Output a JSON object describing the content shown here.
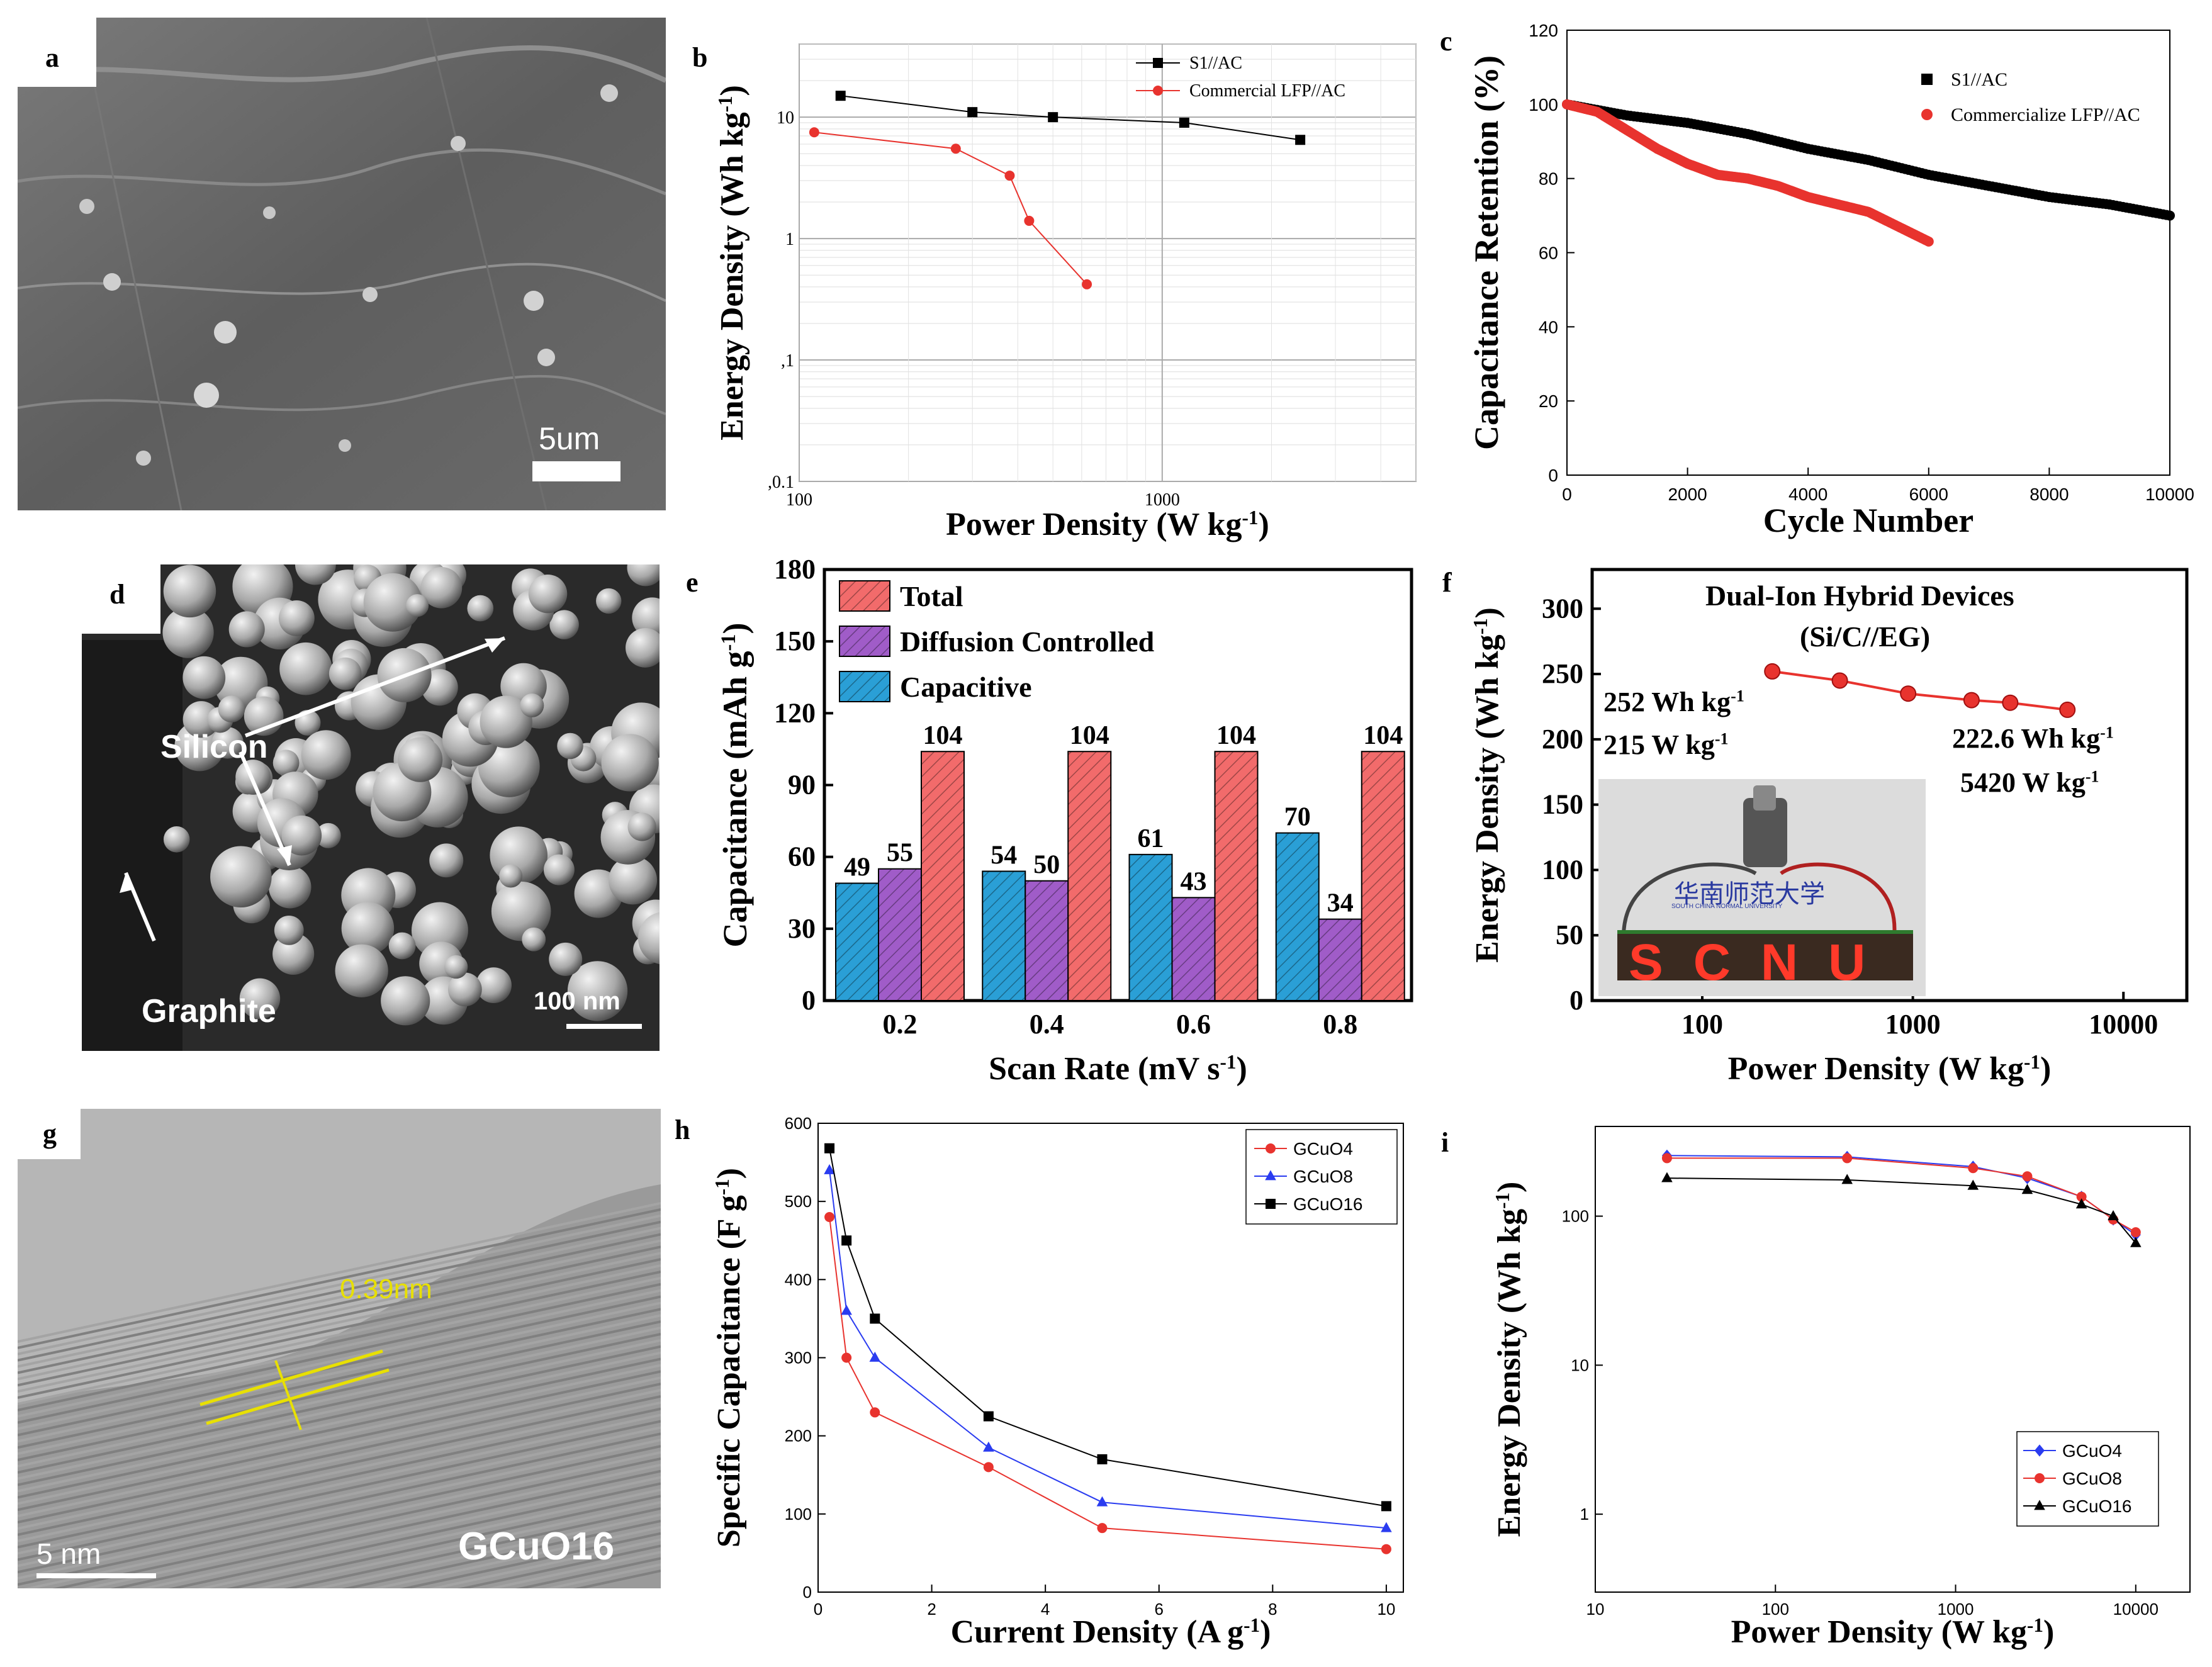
{
  "panels": {
    "a": {
      "letter": "a",
      "scale_bar": "5um"
    },
    "d": {
      "letter": "d",
      "silicon_label": "Silicon",
      "graphite_label": "Graphite",
      "scale_bar": "100 nm"
    },
    "g": {
      "letter": "g",
      "spacing_label": "0.39nm",
      "scale_bar": "5 nm",
      "sample_label": "GCuO16"
    },
    "b": {
      "letter": "b"
    },
    "c": {
      "letter": "c"
    },
    "e": {
      "letter": "e"
    },
    "f": {
      "letter": "f",
      "title_line1": "Dual-Ion Hybrid Devices",
      "title_line2": "(Si/C//EG)",
      "annot_left_1": "252 Wh kg",
      "annot_left_2": "215 W kg",
      "annot_right_1": "222.6 Wh kg",
      "annot_right_2": "5420 W kg",
      "sign_text": "SCNU",
      "sign_header": "华南师范大学",
      "sign_subheader": "SOUTH CHINA NORMAL UNIVERSITY"
    },
    "h": {
      "letter": "h"
    },
    "i": {
      "letter": "i"
    }
  },
  "colors": {
    "black": "#000000",
    "red": "#e8332e",
    "blue": "#2a3cf0",
    "bar_total": "#f26b6b",
    "bar_diff": "#a05cc8",
    "bar_cap": "#2a9fd6"
  },
  "chart_data": [
    {
      "id": "b",
      "type": "line",
      "xscale": "log",
      "yscale": "log",
      "xlabel": "Power Density (W  kg",
      "xlabel_sup": "-1",
      "xlabel_end": ")",
      "ylabel": "Energy Density (Wh kg",
      "ylabel_sup": "-1",
      "ylabel_end": ")",
      "xlim": [
        100,
        5000
      ],
      "ylim": [
        0.01,
        40
      ],
      "xticks": [
        100,
        1000
      ],
      "xtick_labels": [
        "100",
        "1000"
      ],
      "yticks": [
        0.01,
        0.1,
        1,
        10
      ],
      "ytick_labels": [
        ",0.1",
        ",1",
        "1",
        "10"
      ],
      "series": [
        {
          "name": "S1//AC",
          "color": "#000000",
          "marker": "square",
          "x": [
            130,
            300,
            500,
            1150,
            2400
          ],
          "y": [
            15,
            11,
            10,
            9,
            6.5
          ]
        },
        {
          "name": "Commercial LFP//AC",
          "color": "#e8332e",
          "marker": "circle",
          "x": [
            110,
            270,
            380,
            430,
            620
          ],
          "y": [
            7.5,
            5.5,
            3.3,
            1.4,
            0.42
          ]
        }
      ]
    },
    {
      "id": "c",
      "type": "scatter",
      "xlabel": "Cycle Number",
      "ylabel": "Capacitance  Retention (%)",
      "xlim": [
        0,
        10000
      ],
      "ylim": [
        0,
        120
      ],
      "xticks": [
        0,
        2000,
        4000,
        6000,
        8000,
        10000
      ],
      "xtick_labels": [
        "0",
        "2000",
        "4000",
        "6000",
        "8000",
        "10000"
      ],
      "yticks": [
        0,
        20,
        40,
        60,
        80,
        100,
        120
      ],
      "ytick_labels": [
        "0",
        "20",
        "40",
        "60",
        "80",
        "100",
        "120"
      ],
      "series": [
        {
          "name": "S1//AC",
          "color": "#000000",
          "x": [
            0,
            1000,
            2000,
            3000,
            4000,
            5000,
            6000,
            7000,
            8000,
            9000,
            10000
          ],
          "y": [
            100,
            97,
            95,
            92,
            88,
            85,
            81,
            78,
            75,
            73,
            70
          ]
        },
        {
          "name": "Commercialize LFP//AC",
          "color": "#e8332e",
          "x": [
            0,
            500,
            1000,
            1500,
            2000,
            2500,
            3000,
            3500,
            4000,
            4500,
            5000,
            5500,
            6000
          ],
          "y": [
            100,
            98,
            93,
            88,
            84,
            81,
            80,
            78,
            75,
            73,
            71,
            67,
            63
          ]
        }
      ]
    },
    {
      "id": "e",
      "type": "bar",
      "xlabel": "Scan Rate (mV s",
      "xlabel_sup": "-1",
      "xlabel_end": ")",
      "ylabel": "Capacitance (mAh g",
      "ylabel_sup": "-1",
      "ylabel_end": ")",
      "categories": [
        "0.2",
        "0.4",
        "0.6",
        "0.8"
      ],
      "ylim": [
        0,
        180
      ],
      "yticks": [
        0,
        30,
        60,
        90,
        120,
        150,
        180
      ],
      "ytick_labels": [
        "0",
        "30",
        "60",
        "90",
        "120",
        "150",
        "180"
      ],
      "series": [
        {
          "name": "Capacitive",
          "values": [
            49,
            54,
            61,
            70
          ],
          "labels": [
            "49",
            "54",
            "61",
            "70"
          ]
        },
        {
          "name": "Diffusion Controlled",
          "values": [
            55,
            50,
            43,
            34
          ],
          "labels": [
            "55",
            "50",
            "43",
            "34"
          ]
        },
        {
          "name": "Total",
          "values": [
            104,
            104,
            104,
            104
          ],
          "labels": [
            "104",
            "104",
            "104",
            "104"
          ]
        }
      ],
      "legend": [
        "Total",
        "Diffusion Controlled",
        "Capacitive"
      ]
    },
    {
      "id": "f",
      "type": "line",
      "xscale": "log",
      "xlabel": "Power Density (W  kg",
      "xlabel_sup": "-1",
      "xlabel_end": ")",
      "ylabel": "Energy Density (Wh kg",
      "ylabel_sup": "-1",
      "ylabel_end": ")",
      "xlim": [
        30,
        20000
      ],
      "ylim": [
        0,
        330
      ],
      "xticks": [
        100,
        1000,
        10000
      ],
      "xtick_labels": [
        "100",
        "1000",
        "10000"
      ],
      "yticks": [
        0,
        50,
        100,
        150,
        200,
        250,
        300
      ],
      "ytick_labels": [
        "0",
        "50",
        "100",
        "150",
        "200",
        "250",
        "300"
      ],
      "series": [
        {
          "name": "Si/C//EG",
          "color": "#e8332e",
          "x": [
            215,
            450,
            950,
            1900,
            2900,
            5420
          ],
          "y": [
            252,
            245,
            235,
            230,
            228,
            222.6
          ]
        }
      ]
    },
    {
      "id": "h",
      "type": "line",
      "xlabel": "Current Density (A g",
      "xlabel_sup": "-1",
      "xlabel_end": ")",
      "ylabel": "Specific Capacitance (F g",
      "ylabel_sup": "-1",
      "ylabel_end": ")",
      "xlim": [
        0,
        10.3
      ],
      "ylim": [
        0,
        600
      ],
      "xticks": [
        0,
        2,
        4,
        6,
        8,
        10
      ],
      "xtick_labels": [
        "0",
        "2",
        "4",
        "6",
        "8",
        "10"
      ],
      "yticks": [
        0,
        100,
        200,
        300,
        400,
        500,
        600
      ],
      "ytick_labels": [
        "0",
        "100",
        "200",
        "300",
        "400",
        "500",
        "600"
      ],
      "series": [
        {
          "name": "GCuO4",
          "color": "#e8332e",
          "marker": "circle",
          "x": [
            0.2,
            0.5,
            1,
            3,
            5,
            10
          ],
          "y": [
            480,
            300,
            230,
            160,
            82,
            55
          ]
        },
        {
          "name": "GCuO8",
          "color": "#2a3cf0",
          "marker": "triangle",
          "x": [
            0.2,
            0.5,
            1,
            3,
            5,
            10
          ],
          "y": [
            540,
            360,
            300,
            185,
            115,
            82
          ]
        },
        {
          "name": "GCuO16",
          "color": "#000000",
          "marker": "square",
          "x": [
            0.2,
            0.5,
            1,
            3,
            5,
            10
          ],
          "y": [
            568,
            450,
            350,
            225,
            170,
            110
          ]
        }
      ]
    },
    {
      "id": "i",
      "type": "line",
      "xscale": "log",
      "yscale": "log",
      "xlabel": "Power Density (W  kg",
      "xlabel_sup": "-1",
      "xlabel_end": ")",
      "ylabel": "Energy Density (Wh kg",
      "ylabel_sup": "-1",
      "ylabel_end": ")",
      "xlim": [
        10,
        20000
      ],
      "ylim": [
        0.3,
        400
      ],
      "xticks": [
        10,
        100,
        1000,
        10000
      ],
      "xtick_labels": [
        "10",
        "100",
        "1000",
        "10000"
      ],
      "yticks": [
        1,
        10,
        100
      ],
      "ytick_labels": [
        "1",
        "10",
        "100"
      ],
      "series": [
        {
          "name": "GCuO4",
          "color": "#2a3cf0",
          "marker": "diamond",
          "x": [
            25,
            250,
            1250,
            2500,
            5000,
            7500,
            10000
          ],
          "y": [
            255,
            250,
            215,
            180,
            135,
            95,
            75
          ]
        },
        {
          "name": "GCuO8",
          "color": "#e8332e",
          "marker": "circle",
          "x": [
            25,
            250,
            1250,
            2500,
            5000,
            7500,
            10000
          ],
          "y": [
            245,
            245,
            210,
            185,
            135,
            95,
            78
          ]
        },
        {
          "name": "GCuO16",
          "color": "#000000",
          "marker": "triangle",
          "x": [
            25,
            250,
            1250,
            2500,
            5000,
            7500,
            10000
          ],
          "y": [
            180,
            175,
            160,
            150,
            120,
            100,
            66
          ]
        }
      ]
    }
  ]
}
